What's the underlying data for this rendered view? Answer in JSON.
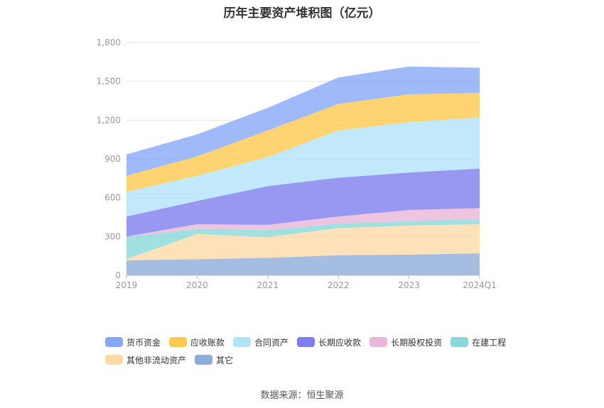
{
  "chart_data": {
    "type": "area",
    "stacked": true,
    "title": "历年主要资产堆积图（亿元）",
    "categories": [
      "2019",
      "2020",
      "2021",
      "2022",
      "2023",
      "2024Q1"
    ],
    "ylim": [
      0,
      1800
    ],
    "yticks": [
      0,
      300,
      600,
      900,
      1200,
      1500,
      1800
    ],
    "ytick_labels": [
      "0",
      "300",
      "600",
      "900",
      "1,200",
      "1,500",
      "1,800"
    ],
    "grid": true,
    "series": [
      {
        "name": "其它",
        "color": "#8eacd9",
        "values": [
          115,
          125,
          135,
          155,
          160,
          170
        ]
      },
      {
        "name": "其他非流动资产",
        "color": "#fdd9a6",
        "values": [
          10,
          195,
          160,
          210,
          225,
          225
        ]
      },
      {
        "name": "在建工程",
        "color": "#8ad8d8",
        "values": [
          170,
          40,
          55,
          35,
          35,
          40
        ]
      },
      {
        "name": "长期股权投资",
        "color": "#e8b6da",
        "values": [
          5,
          35,
          40,
          55,
          85,
          85
        ]
      },
      {
        "name": "长期应收款",
        "color": "#7e7ef0",
        "values": [
          155,
          180,
          300,
          300,
          290,
          305
        ]
      },
      {
        "name": "合同资产",
        "color": "#b3e2fb",
        "values": [
          190,
          195,
          225,
          365,
          390,
          395
        ]
      },
      {
        "name": "应收账款",
        "color": "#fec94f",
        "values": [
          125,
          150,
          205,
          205,
          215,
          190
        ]
      },
      {
        "name": "货币资金",
        "color": "#87a8f8",
        "values": [
          165,
          170,
          175,
          205,
          215,
          195
        ]
      }
    ]
  },
  "legend": [
    {
      "name": "货币资金",
      "color": "#87a8f8"
    },
    {
      "name": "应收账款",
      "color": "#fec94f"
    },
    {
      "name": "合同资产",
      "color": "#b3e2fb"
    },
    {
      "name": "长期应收款",
      "color": "#7e7ef0"
    },
    {
      "name": "长期股权投资",
      "color": "#e8b6da"
    },
    {
      "name": "在建工程",
      "color": "#8ad8d8"
    },
    {
      "name": "其他非流动资产",
      "color": "#fdd9a6"
    },
    {
      "name": "其它",
      "color": "#8eacd9"
    }
  ],
  "source_text": "数据来源：恒生聚源"
}
